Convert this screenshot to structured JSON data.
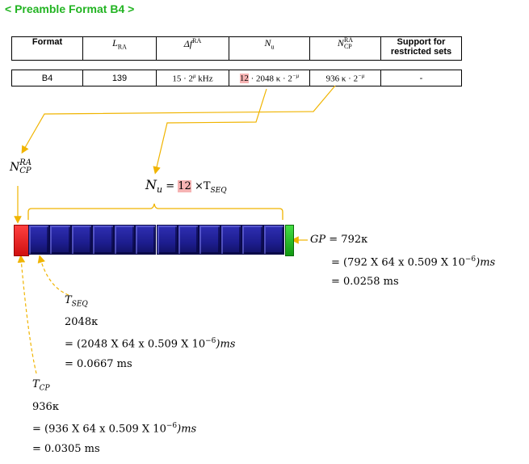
{
  "title": "< Preamble Format B4 >",
  "table": {
    "headers": {
      "format": "Format",
      "lra": "L",
      "lra_sub": "RA",
      "df": "Δf",
      "df_sup": "RA",
      "nu": "N",
      "nu_sub": "u",
      "ncp": "N",
      "ncp_sup": "RA",
      "ncp_sub": "CP",
      "support": "Support for restricted sets"
    },
    "row": {
      "format": "B4",
      "lra": "139",
      "df": "15 · 2",
      "df_exp": "μ",
      "df_unit": " kHz",
      "nu_hl": "12",
      "nu_rest": " · 2048 κ · 2",
      "nu_exp": "−μ",
      "ncp": "936 κ · 2",
      "ncp_exp": "−μ",
      "support": "-"
    }
  },
  "labels": {
    "ncp_label": "N",
    "ncp_label_sup": "RA",
    "ncp_label_sub": "CP",
    "nu_label": "N",
    "nu_label_sub": "u",
    "nu_eq": " = ",
    "nu_hl": "12",
    "nu_times": " ×T",
    "nu_times_sub": "SEQ"
  },
  "gp": {
    "label": "GP",
    "eq1": " = 792κ",
    "eq2": "= (792 X 64 x 0.509 X 10",
    "eq2_exp": "−6",
    "eq2_tail": ")ms",
    "eq3": "= 0.0258 ms"
  },
  "tseq": {
    "label": "T",
    "label_sub": "SEQ",
    "v1": "2048κ",
    "v2": "= (2048 X 64 x 0.509 X 10",
    "v2_exp": "−6",
    "v2_tail": ")ms",
    "v3": "= 0.0667 ms"
  },
  "tcp": {
    "label": "T",
    "label_sub": "CP",
    "v1": "936κ",
    "v2": "= (936 X 64 x 0.509 X 10",
    "v2_exp": "−6",
    "v2_tail": ")ms",
    "v3": "= 0.0305 ms"
  },
  "structure": {
    "seq_count": 12
  },
  "colors": {
    "title": "#22b422",
    "cp_block": "#e02020",
    "seq_block": "#1d1d8f",
    "gp_block": "#22bb22",
    "arrow": "#f0b400",
    "highlight": "#f6b3b3"
  }
}
